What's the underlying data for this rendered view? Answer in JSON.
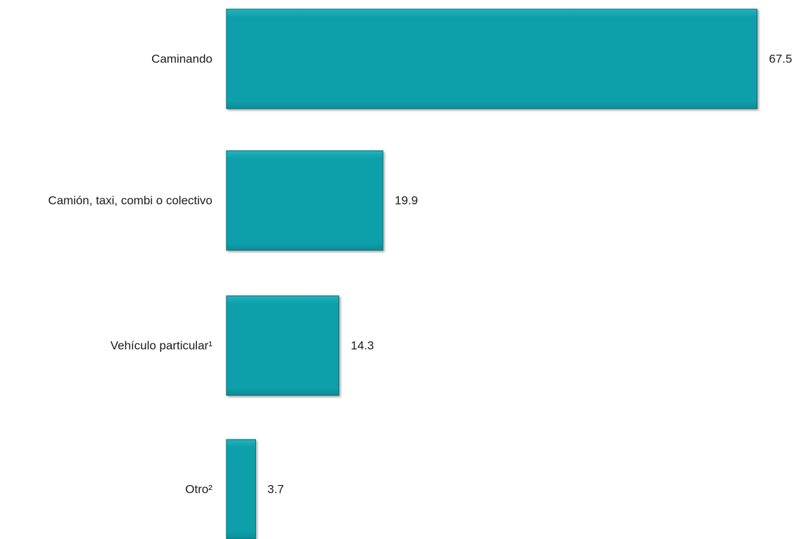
{
  "chart_data": {
    "type": "bar",
    "orientation": "horizontal",
    "categories": [
      "Caminando",
      "Camión, taxi, combi o colectivo",
      "Vehículo particular¹",
      "Otro²"
    ],
    "values": [
      67.5,
      19.9,
      14.3,
      3.7
    ],
    "value_labels": [
      "67.5",
      "19.9",
      "14.3",
      "3.7"
    ],
    "title": "",
    "xlabel": "",
    "ylabel": "",
    "xlim": [
      0,
      67.5
    ],
    "grid": false,
    "legend": "none",
    "colors": {
      "bar_top": "#27b2bb",
      "bar_mid": "#0aa0ab",
      "bar_bottom": "#078d97",
      "bar_edge": "#056f77"
    }
  }
}
